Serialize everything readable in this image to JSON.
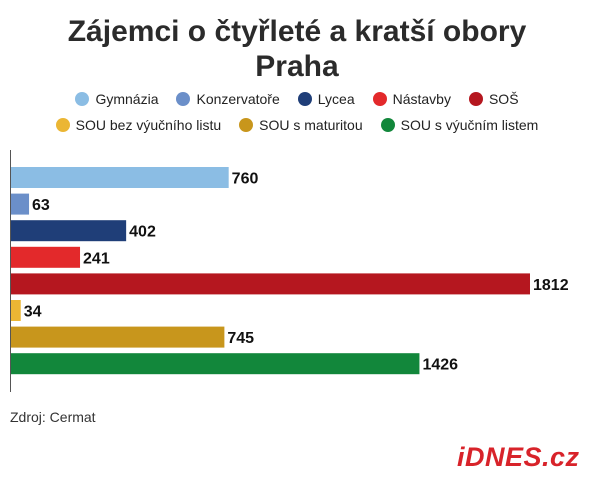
{
  "title_line1": "Zájemci o čtyřleté a kratší obory",
  "title_line2": "Praha",
  "legend_row1": [
    {
      "label": "Gymnázia",
      "color": "#8bbde4"
    },
    {
      "label": "Konzervatoře",
      "color": "#6b8fc9"
    },
    {
      "label": "Lycea",
      "color": "#1f3e78"
    },
    {
      "label": "Nástavby",
      "color": "#e3292b"
    },
    {
      "label": "SOŠ",
      "color": "#b5171f"
    }
  ],
  "legend_row2": [
    {
      "label": "SOU bez výučního listu",
      "color": "#ebb634"
    },
    {
      "label": "SOU s maturitou",
      "color": "#c8961c"
    },
    {
      "label": "SOU s výučním listem",
      "color": "#12873b"
    }
  ],
  "source": "Zdroj: Cermat",
  "logo": "iDNES.cz",
  "chart_data": {
    "type": "bar",
    "orientation": "horizontal",
    "categories": [
      "Gymnázia",
      "Konzervatoře",
      "Lycea",
      "Nástavby",
      "SOŠ",
      "SOU bez výučního listu",
      "SOU s maturitou",
      "SOU s výučním listem"
    ],
    "values": [
      760,
      63,
      402,
      241,
      1812,
      34,
      745,
      1426
    ],
    "labels": [
      "760",
      "63",
      "402",
      "241",
      "1812",
      "34",
      "745",
      "1426"
    ],
    "colors": [
      "#8bbde4",
      "#6b8fc9",
      "#1f3e78",
      "#e3292b",
      "#b5171f",
      "#ebb634",
      "#c8961c",
      "#12873b"
    ],
    "xlim": [
      0,
      1812
    ],
    "grid": false,
    "legend_position": "top"
  }
}
